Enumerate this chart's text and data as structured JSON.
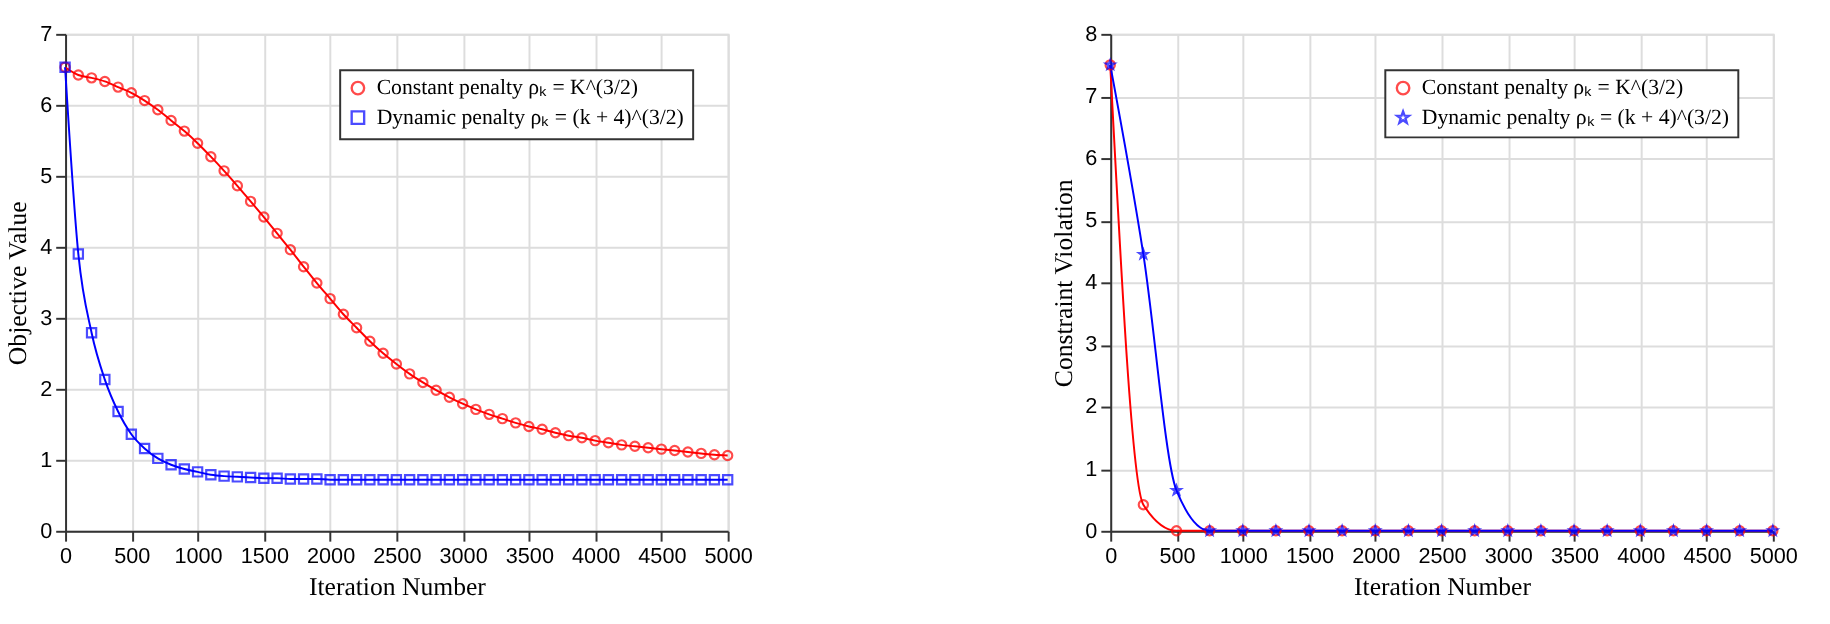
{
  "chart_data": [
    {
      "type": "line",
      "xlabel": "Iteration Number",
      "ylabel": "Objective Value",
      "xlim": [
        0,
        5000
      ],
      "ylim": [
        0,
        7
      ],
      "xticks": [
        0,
        500,
        1000,
        1500,
        2000,
        2500,
        3000,
        3500,
        4000,
        4500,
        5000
      ],
      "yticks": [
        0,
        1,
        2,
        3,
        4,
        5,
        6,
        7
      ],
      "grid": true,
      "legend": "top right",
      "line_style": "solid",
      "x": [
        0,
        100,
        200,
        300,
        400,
        500,
        600,
        700,
        800,
        900,
        1000,
        1100,
        1200,
        1300,
        1400,
        1500,
        1600,
        1700,
        1800,
        1900,
        2000,
        2100,
        2200,
        2300,
        2400,
        2500,
        2600,
        2700,
        2800,
        2900,
        3000,
        3100,
        3200,
        3300,
        3400,
        3500,
        3600,
        3700,
        3800,
        3900,
        4000,
        4100,
        4200,
        4300,
        4400,
        4500,
        4600,
        4700,
        4800,
        4900,
        5000
      ],
      "series": [
        {
          "name": "Constant penalty ρₖ = K^(3/2)",
          "color": "#ff0000",
          "marker": "circle",
          "values": [
            6.53,
            6.42,
            6.38,
            6.33,
            6.25,
            6.17,
            6.06,
            5.93,
            5.78,
            5.63,
            5.46,
            5.27,
            5.07,
            4.86,
            4.64,
            4.42,
            4.19,
            3.96,
            3.72,
            3.49,
            3.27,
            3.05,
            2.86,
            2.67,
            2.5,
            2.35,
            2.21,
            2.09,
            1.98,
            1.88,
            1.79,
            1.71,
            1.64,
            1.58,
            1.52,
            1.47,
            1.43,
            1.38,
            1.34,
            1.31,
            1.27,
            1.24,
            1.21,
            1.19,
            1.17,
            1.15,
            1.13,
            1.11,
            1.09,
            1.07,
            1.06
          ]
        },
        {
          "name": "Dynamic penalty ρₖ = (k + 4)^(3/2)",
          "color": "#0000ff",
          "marker": "square",
          "values": [
            6.53,
            3.9,
            2.79,
            2.13,
            1.68,
            1.36,
            1.16,
            1.02,
            0.93,
            0.87,
            0.83,
            0.79,
            0.77,
            0.76,
            0.75,
            0.74,
            0.74,
            0.73,
            0.73,
            0.73,
            0.72,
            0.72,
            0.72,
            0.72,
            0.72,
            0.72,
            0.72,
            0.72,
            0.72,
            0.72,
            0.72,
            0.72,
            0.72,
            0.72,
            0.72,
            0.72,
            0.72,
            0.72,
            0.72,
            0.72,
            0.72,
            0.72,
            0.72,
            0.72,
            0.72,
            0.72,
            0.72,
            0.72,
            0.72,
            0.72,
            0.72
          ]
        }
      ]
    },
    {
      "type": "line",
      "xlabel": "Iteration Number",
      "ylabel": "Constraint Violation",
      "xlim": [
        0,
        5000
      ],
      "ylim": [
        0,
        8
      ],
      "xticks": [
        0,
        500,
        1000,
        1500,
        2000,
        2500,
        3000,
        3500,
        4000,
        4500,
        5000
      ],
      "yticks": [
        0,
        1,
        2,
        3,
        4,
        5,
        6,
        7,
        8
      ],
      "grid": true,
      "legend": "top right",
      "line_style": "solid",
      "x": [
        0,
        250,
        500,
        750,
        1000,
        1250,
        1500,
        1750,
        2000,
        2250,
        2500,
        2750,
        3000,
        3250,
        3500,
        3750,
        4000,
        4250,
        4500,
        4750,
        5000
      ],
      "series": [
        {
          "name": "Constant penalty ρₖ = K^(3/2)",
          "color": "#ff0000",
          "marker": "circle",
          "values": [
            7.5,
            0.42,
            0,
            0,
            0,
            0,
            0,
            0,
            0,
            0,
            0,
            0,
            0,
            0,
            0,
            0,
            0,
            0,
            0,
            0,
            0
          ]
        },
        {
          "name": "Dynamic penalty ρₖ = (k + 4)^(3/2)",
          "color": "#0000ff",
          "marker": "star",
          "values": [
            7.5,
            4.45,
            0.65,
            0,
            0,
            0,
            0,
            0,
            0,
            0,
            0,
            0,
            0,
            0,
            0,
            0,
            0,
            0,
            0,
            0,
            0
          ]
        }
      ]
    }
  ]
}
